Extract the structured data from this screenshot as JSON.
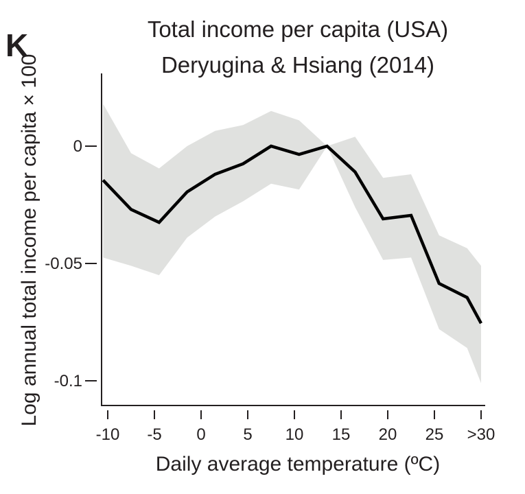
{
  "panel_label": "K",
  "chart_data": {
    "type": "line",
    "title": "Total income per capita (USA)",
    "subtitle": "Deryugina & Hsiang (2014)",
    "xlabel": "Daily average temperature (ºC)",
    "ylabel": "Log annual total income per capita × 100",
    "xlim": [
      -11,
      31
    ],
    "ylim": [
      -0.11,
      0.03
    ],
    "x_ticks": [
      -10,
      -5,
      0,
      5,
      10,
      15,
      20,
      25,
      30
    ],
    "x_tick_labels": [
      "-10",
      "-5",
      "0",
      "5",
      "10",
      "15",
      "20",
      "25",
      ">30"
    ],
    "y_ticks": [
      0,
      -0.05,
      -0.1
    ],
    "y_tick_labels": [
      "0",
      "-0.05",
      "-0.1"
    ],
    "grid": false,
    "series": [
      {
        "name": "estimate",
        "color": "#000000",
        "x": [
          -10.5,
          -7.5,
          -4.5,
          -1.5,
          1.5,
          4.5,
          7.5,
          10.5,
          13.5,
          16.5,
          19.5,
          22.5,
          25.5,
          28.5,
          30
        ],
        "values": [
          -0.0145,
          -0.027,
          -0.0325,
          -0.0195,
          -0.012,
          -0.0075,
          0.0,
          -0.0035,
          0.0,
          -0.011,
          -0.031,
          -0.0295,
          -0.0585,
          -0.0645,
          -0.0755
        ]
      }
    ],
    "confidence_band": {
      "color": "#e0e1df",
      "x": [
        -10.5,
        -7.5,
        -4.5,
        -1.5,
        1.5,
        4.5,
        7.5,
        10.5,
        13.5,
        16.5,
        19.5,
        22.5,
        25.5,
        28.5,
        30
      ],
      "upper": [
        0.018,
        -0.003,
        -0.0095,
        0.0,
        0.0065,
        0.009,
        0.015,
        0.011,
        0.0,
        0.004,
        -0.0135,
        -0.012,
        -0.038,
        -0.0435,
        -0.051
      ],
      "lower": [
        -0.0475,
        -0.051,
        -0.055,
        -0.039,
        -0.03,
        -0.0235,
        -0.016,
        -0.0185,
        0.0,
        -0.026,
        -0.0485,
        -0.0475,
        -0.078,
        -0.086,
        -0.101
      ]
    }
  }
}
